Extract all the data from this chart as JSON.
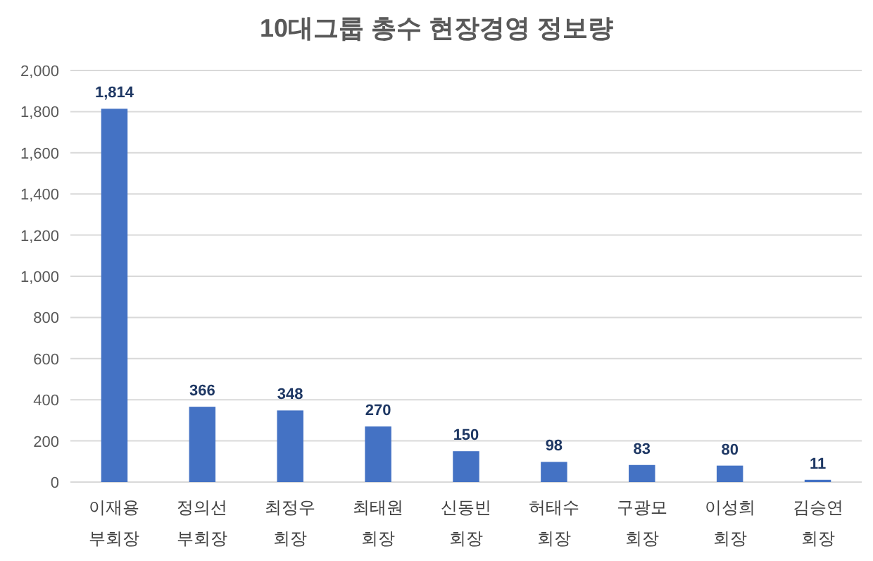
{
  "chart_data": {
    "type": "bar",
    "title": "10대그룹 총수 현장경영 정보량",
    "categories": [
      "이재용 부회장",
      "정의선 부회장",
      "최정우 회장",
      "최태원 회장",
      "신동빈 회장",
      "허태수 회장",
      "구광모 회장",
      "이성희 회장",
      "김승연 회장"
    ],
    "values": [
      1814,
      366,
      348,
      270,
      150,
      98,
      83,
      80,
      11
    ],
    "value_labels": [
      "1,814",
      "366",
      "348",
      "270",
      "150",
      "98",
      "83",
      "80",
      "11"
    ],
    "color": "#4472c4",
    "ylim": [
      0,
      2000
    ],
    "yticks": [
      {
        "value": 0,
        "label": "0"
      },
      {
        "value": 200,
        "label": "200"
      },
      {
        "value": 400,
        "label": "400"
      },
      {
        "value": 600,
        "label": "600"
      },
      {
        "value": 800,
        "label": "800"
      },
      {
        "value": 1000,
        "label": "1,000"
      },
      {
        "value": 1200,
        "label": "1,200"
      },
      {
        "value": 1400,
        "label": "1,400"
      },
      {
        "value": 1600,
        "label": "1,600"
      },
      {
        "value": 1800,
        "label": "1,800"
      },
      {
        "value": 2000,
        "label": "2,000"
      }
    ],
    "grid": "y"
  }
}
